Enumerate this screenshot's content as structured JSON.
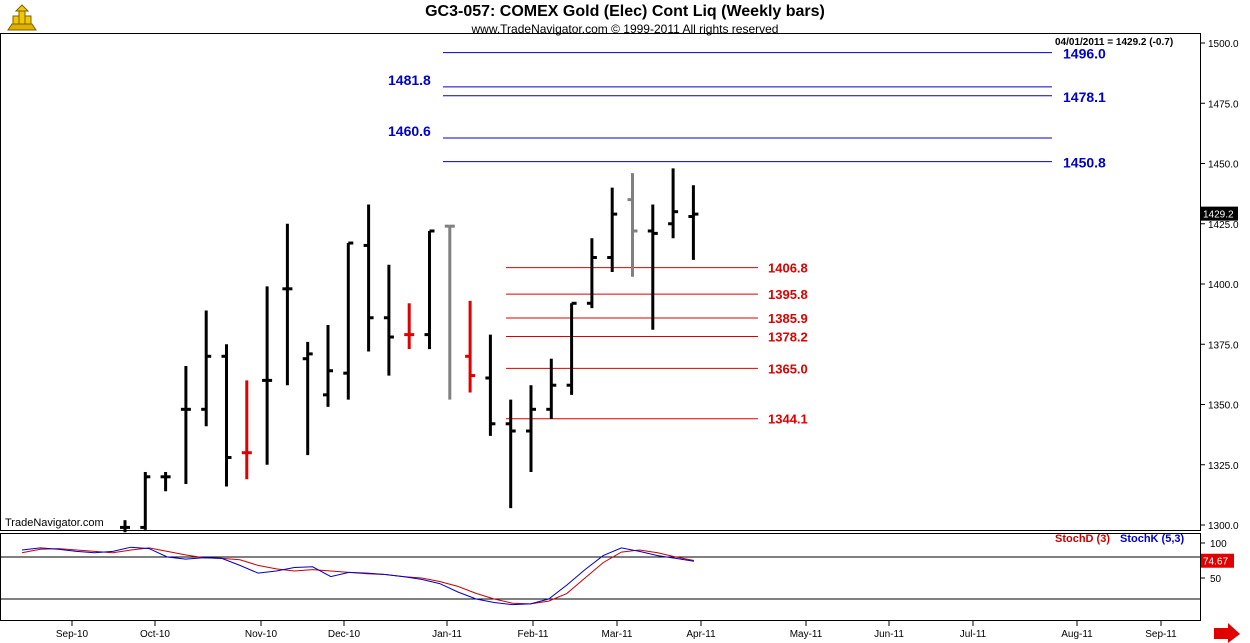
{
  "header": {
    "title": "GC3-057:  COMEX Gold (Elec) Cont Liq  (Weekly bars)",
    "subtitle": "www.TradeNavigator.com © 1999-2011 All rights reserved",
    "status_line": "04/01/2011 = 1429.2 (-0.7)",
    "watermark": "TradeNavigator.com"
  },
  "oscillator": {
    "legend_d": "StochD (3)",
    "legend_k": "StochK (5,3)",
    "color_d": "#cc0000",
    "color_k": "#0000cc",
    "current_value": "74.67",
    "y_ticks": [
      "100",
      "50"
    ],
    "levels": [
      80,
      20
    ]
  },
  "chart_data": {
    "type": "ohlc",
    "title": "GC3-057:  COMEX Gold (Elec) Cont Liq  (Weekly bars)",
    "xlabel": "",
    "ylabel": "",
    "ylim": [
      1297,
      1503
    ],
    "y_ticks": [
      "1500.0",
      "1475.0",
      "1450.0",
      "1425.0",
      "1400.0",
      "1375.0",
      "1350.0",
      "1325.0",
      "1300.0"
    ],
    "y_tick_values": [
      1500,
      1475,
      1450,
      1425,
      1400,
      1375,
      1350,
      1325,
      1300
    ],
    "x_labels": [
      "Sep-10",
      "Oct-10",
      "Nov-10",
      "Dec-10",
      "Jan-11",
      "Feb-11",
      "Mar-11",
      "Apr-11",
      "May-11",
      "Jun-11",
      "Jul-11",
      "Aug-11",
      "Sep-11"
    ],
    "last_price_label": "1429.2",
    "bars": [
      {
        "o": 1299,
        "h": 1302,
        "l": 1297,
        "c": 1299,
        "color": "#000000"
      },
      {
        "o": 1299,
        "h": 1322,
        "l": 1298,
        "c": 1320,
        "color": "#000000"
      },
      {
        "o": 1320,
        "h": 1322,
        "l": 1314,
        "c": 1320,
        "color": "#000000"
      },
      {
        "o": 1348,
        "h": 1366,
        "l": 1317,
        "c": 1348,
        "color": "#000000"
      },
      {
        "o": 1348,
        "h": 1389,
        "l": 1341,
        "c": 1370,
        "color": "#000000"
      },
      {
        "o": 1370,
        "h": 1375,
        "l": 1316,
        "c": 1328,
        "color": "#000000"
      },
      {
        "o": 1330,
        "h": 1360,
        "l": 1319,
        "c": 1330,
        "color": "#e00000"
      },
      {
        "o": 1360,
        "h": 1399,
        "l": 1325,
        "c": 1360,
        "color": "#000000"
      },
      {
        "o": 1398,
        "h": 1425,
        "l": 1358,
        "c": 1398,
        "color": "#000000"
      },
      {
        "o": 1369,
        "h": 1376,
        "l": 1329,
        "c": 1371,
        "color": "#000000"
      },
      {
        "o": 1354,
        "h": 1383,
        "l": 1349,
        "c": 1364,
        "color": "#000000"
      },
      {
        "o": 1363,
        "h": 1417,
        "l": 1352,
        "c": 1417,
        "color": "#000000"
      },
      {
        "o": 1416,
        "h": 1433,
        "l": 1372,
        "c": 1386,
        "color": "#000000"
      },
      {
        "o": 1386,
        "h": 1408,
        "l": 1362,
        "c": 1378,
        "color": "#000000"
      },
      {
        "o": 1379,
        "h": 1392,
        "l": 1373,
        "c": 1379,
        "color": "#e00000"
      },
      {
        "o": 1379,
        "h": 1422,
        "l": 1373,
        "c": 1422,
        "color": "#000000"
      },
      {
        "o": 1424,
        "h": 1424,
        "l": 1352,
        "c": 1424,
        "color": "#808080"
      },
      {
        "o": 1370,
        "h": 1393,
        "l": 1355,
        "c": 1362,
        "color": "#e00000"
      },
      {
        "o": 1361,
        "h": 1379,
        "l": 1337,
        "c": 1342,
        "color": "#000000"
      },
      {
        "o": 1342,
        "h": 1352,
        "l": 1307,
        "c": 1339,
        "color": "#000000"
      },
      {
        "o": 1339,
        "h": 1358,
        "l": 1322,
        "c": 1348,
        "color": "#000000"
      },
      {
        "o": 1348,
        "h": 1369,
        "l": 1344,
        "c": 1358,
        "color": "#000000"
      },
      {
        "o": 1358,
        "h": 1392,
        "l": 1354,
        "c": 1392,
        "color": "#000000"
      },
      {
        "o": 1392,
        "h": 1419,
        "l": 1390,
        "c": 1411,
        "color": "#000000"
      },
      {
        "o": 1411,
        "h": 1440,
        "l": 1405,
        "c": 1429,
        "color": "#000000"
      },
      {
        "o": 1435,
        "h": 1446,
        "l": 1403,
        "c": 1422,
        "color": "#808080"
      },
      {
        "o": 1422,
        "h": 1433,
        "l": 1381,
        "c": 1421,
        "color": "#000000"
      },
      {
        "o": 1425,
        "h": 1448,
        "l": 1419,
        "c": 1430,
        "color": "#000000"
      },
      {
        "o": 1428,
        "h": 1441,
        "l": 1410,
        "c": 1429,
        "color": "#000000"
      }
    ],
    "resistance_lines": [
      {
        "value": 1496.0,
        "label": "1496.0",
        "label_side": "right"
      },
      {
        "value": 1481.8,
        "label": "1481.8",
        "label_side": "left"
      },
      {
        "value": 1478.1,
        "label": "1478.1",
        "label_side": "right"
      },
      {
        "value": 1460.6,
        "label": "1460.6",
        "label_side": "left"
      },
      {
        "value": 1450.8,
        "label": "1450.8",
        "label_side": "right"
      }
    ],
    "support_lines": [
      {
        "value": 1406.8,
        "label": "1406.8"
      },
      {
        "value": 1395.8,
        "label": "1395.8"
      },
      {
        "value": 1385.9,
        "label": "1385.9"
      },
      {
        "value": 1378.2,
        "label": "1378.2"
      },
      {
        "value": 1365.0,
        "label": "1365.0"
      },
      {
        "value": 1344.1,
        "label": "1344.1"
      }
    ],
    "stoch_k": [
      90,
      93,
      91,
      88,
      86,
      88,
      94,
      92,
      80,
      77,
      79,
      78,
      68,
      57,
      60,
      65,
      66,
      52,
      58,
      57,
      55,
      52,
      48,
      42,
      30,
      20,
      15,
      12,
      13,
      20,
      40,
      62,
      82,
      93,
      88,
      82,
      78,
      74
    ],
    "stoch_d": [
      86,
      91,
      92,
      90,
      88,
      86,
      90,
      93,
      88,
      83,
      79,
      78,
      76,
      68,
      63,
      60,
      62,
      60,
      58,
      56,
      55,
      52,
      50,
      45,
      38,
      28,
      20,
      14,
      13,
      17,
      28,
      50,
      72,
      87,
      90,
      86,
      80,
      75
    ]
  },
  "colors": {
    "resistance": "#0000cc",
    "support": "#dd0000",
    "grid": "#000000"
  }
}
